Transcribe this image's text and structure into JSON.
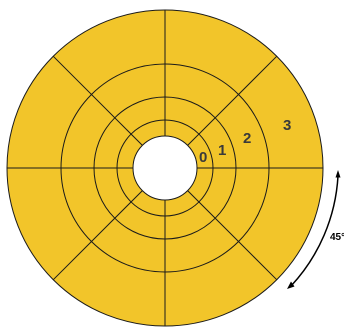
{
  "diagram": {
    "colors": {
      "fill": "#f2c52a",
      "stroke": "#1a1a1a",
      "center": "#ffffff",
      "label": "#3a3a3a",
      "arrow": "#000000"
    },
    "ring_labels": [
      "0",
      "1",
      "2",
      "3"
    ],
    "angle_label": "45°"
  }
}
